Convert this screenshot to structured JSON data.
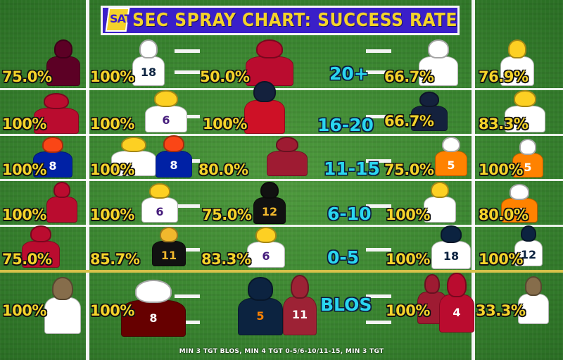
{
  "title": {
    "logo_text": "SAT",
    "text": "SEC SPRAY CHART: SUCCESS RATE"
  },
  "zones": [
    "20+",
    "16-20",
    "11-15",
    "6-10",
    "0-5",
    "BLOS"
  ],
  "rows": [
    {
      "zone": "20+",
      "cells": [
        "75.0%",
        "100%",
        "50.0%",
        "66.7%",
        "76.9%"
      ]
    },
    {
      "zone": "16-20",
      "cells": [
        "100%",
        "100%",
        "100%",
        "66.7%",
        "83.3%"
      ]
    },
    {
      "zone": "11-15",
      "cells": [
        "100%",
        "100%",
        "80.0%",
        "75.0%",
        "100%"
      ]
    },
    {
      "zone": "6-10",
      "cells": [
        "100%",
        "100%",
        "75.0%",
        "100%",
        "80.0%"
      ]
    },
    {
      "zone": "0-5",
      "cells": [
        "75.0%",
        "85.7%",
        "83.3%",
        "100%",
        "100%"
      ]
    },
    {
      "zone": "BLOS",
      "cells": [
        "100%",
        "100%",
        "100%",
        "33.3%"
      ]
    }
  ],
  "footer_note": "MIN 3 TGT BLOS, MIN 4 TGT 0-5/6-10/11-15, MIN 3 TGT",
  "player_colors": {
    "texas_am": "#5c0025",
    "georgia": "#ba0c2f",
    "auburn": "#0c2340",
    "lsu": "#461d7c",
    "lsu_gold": "#fdd023",
    "ole_miss": "#14213d",
    "ole_miss_red": "#ce1126",
    "tennessee": "#ff8200",
    "florida": "#0021a5",
    "florida_orange": "#fa4616",
    "missouri": "#111111",
    "missouri_gold": "#f1b82d",
    "alabama": "#9e1b32",
    "vanderbilt": "#866d4b",
    "mississippi_state": "#660000",
    "arkansas": "#9d2235"
  },
  "players": [
    {
      "name": "player-texas-am-1",
      "colors": [
        "#5c0025",
        "#5c0025",
        "#ffffff"
      ],
      "num": ""
    },
    {
      "name": "player-auburn-18",
      "colors": [
        "#ffffff",
        "#ffffff",
        "#0c2340"
      ],
      "num": "18"
    },
    {
      "name": "player-georgia-1",
      "colors": [
        "#ba0c2f",
        "#ba0c2f",
        "#ffffff"
      ],
      "num": ""
    },
    {
      "name": "player-ole-miss-1",
      "colors": [
        "#ffffff",
        "#ffffff",
        "#14213d"
      ],
      "num": ""
    },
    {
      "name": "player-lsu-1",
      "colors": [
        "#fdd023",
        "#ffffff",
        "#461d7c"
      ],
      "num": ""
    },
    {
      "name": "player-georgia-2",
      "colors": [
        "#ba0c2f",
        "#ba0c2f",
        "#ffffff"
      ],
      "num": ""
    },
    {
      "name": "player-lsu-6a",
      "colors": [
        "#fdd023",
        "#ffffff",
        "#461d7c"
      ],
      "num": "6"
    },
    {
      "name": "player-ole-miss-2",
      "colors": [
        "#14213d",
        "#ce1126",
        "#ffffff"
      ],
      "num": ""
    },
    {
      "name": "player-ole-miss-3",
      "colors": [
        "#14213d",
        "#14213d",
        "#ffffff"
      ],
      "num": ""
    },
    {
      "name": "player-lsu-2",
      "colors": [
        "#fdd023",
        "#ffffff",
        "#461d7c"
      ],
      "num": ""
    },
    {
      "name": "player-florida-8a",
      "colors": [
        "#fa4616",
        "#0021a5",
        "#ffffff"
      ],
      "num": "8"
    },
    {
      "name": "player-lsu-3",
      "colors": [
        "#fdd023",
        "#ffffff",
        "#461d7c"
      ],
      "num": ""
    },
    {
      "name": "player-florida-8b",
      "colors": [
        "#fa4616",
        "#0021a5",
        "#ffffff"
      ],
      "num": "8"
    },
    {
      "name": "player-alabama-1",
      "colors": [
        "#9e1b32",
        "#9e1b32",
        "#ffffff"
      ],
      "num": ""
    },
    {
      "name": "player-tennessee-5a",
      "colors": [
        "#ffffff",
        "#ff8200",
        "#ffffff"
      ],
      "num": "5"
    },
    {
      "name": "player-tennessee-5b",
      "colors": [
        "#ffffff",
        "#ff8200",
        "#ffffff"
      ],
      "num": "5"
    },
    {
      "name": "player-georgia-3",
      "colors": [
        "#ba0c2f",
        "#ba0c2f",
        "#ffffff"
      ],
      "num": ""
    },
    {
      "name": "player-lsu-6b",
      "colors": [
        "#fdd023",
        "#ffffff",
        "#461d7c"
      ],
      "num": "6"
    },
    {
      "name": "player-missouri-1",
      "colors": [
        "#111111",
        "#111111",
        "#f1b82d"
      ],
      "num": "12"
    },
    {
      "name": "player-lsu-4",
      "colors": [
        "#fdd023",
        "#ffffff",
        "#461d7c"
      ],
      "num": ""
    },
    {
      "name": "player-tennessee-5c",
      "colors": [
        "#ffffff",
        "#ff8200",
        "#ffffff"
      ],
      "num": "5"
    },
    {
      "name": "player-georgia-4",
      "colors": [
        "#ba0c2f",
        "#ba0c2f",
        "#ffffff"
      ],
      "num": ""
    },
    {
      "name": "player-missouri-11",
      "colors": [
        "#f1b82d",
        "#111111",
        "#f1b82d"
      ],
      "num": "11"
    },
    {
      "name": "player-lsu-6c",
      "colors": [
        "#fdd023",
        "#ffffff",
        "#461d7c"
      ],
      "num": "6"
    },
    {
      "name": "player-auburn-18b",
      "colors": [
        "#0c2340",
        "#ffffff",
        "#0c2340"
      ],
      "num": "18"
    },
    {
      "name": "player-auburn-12",
      "colors": [
        "#0c2340",
        "#ffffff",
        "#0c2340"
      ],
      "num": "12"
    },
    {
      "name": "player-vanderbilt-1",
      "colors": [
        "#866d4b",
        "#ffffff",
        "#111111"
      ],
      "num": ""
    },
    {
      "name": "player-mississippi-state-1",
      "colors": [
        "#ffffff",
        "#660000",
        "#ffffff"
      ],
      "num": "8"
    },
    {
      "name": "player-auburn-5",
      "colors": [
        "#0c2340",
        "#0c2340",
        "#ff8200"
      ],
      "num": "5"
    },
    {
      "name": "player-arkansas-1",
      "colors": [
        "#9d2235",
        "#9d2235",
        "#ffffff"
      ],
      "num": "11"
    },
    {
      "name": "player-alabama-2",
      "colors": [
        "#9e1b32",
        "#9e1b32",
        "#ffffff"
      ],
      "num": ""
    },
    {
      "name": "player-georgia-5",
      "colors": [
        "#ba0c2f",
        "#ba0c2f",
        "#ffffff"
      ],
      "num": "4"
    },
    {
      "name": "player-vanderbilt-2",
      "colors": [
        "#866d4b",
        "#ffffff",
        "#111111"
      ],
      "num": ""
    }
  ]
}
